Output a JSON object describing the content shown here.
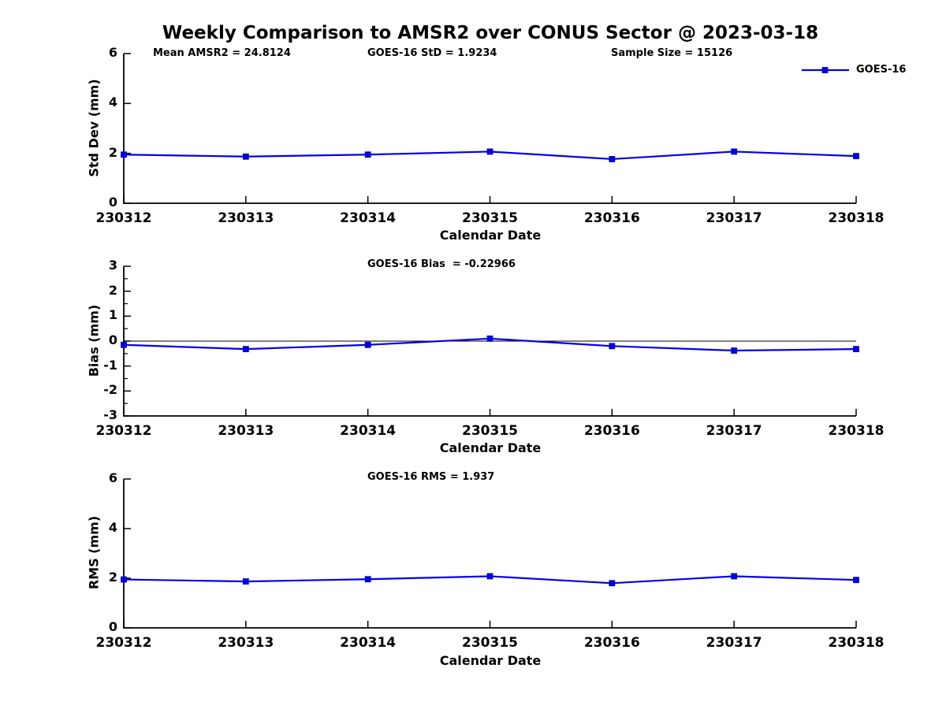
{
  "title": "Weekly Comparison to AMSR2 over CONUS Sector @ 2023-03-18",
  "annotations": {
    "mean_amsr2": "Mean AMSR2 = 24.8124",
    "goes16_std": "GOES-16 StD = 1.9234",
    "sample_size": "Sample Size = 15126",
    "goes16_bias": "GOES-16 Bias  = -0.22966",
    "goes16_rms": "GOES-16 RMS = 1.937"
  },
  "colors": {
    "line": "#0000ee",
    "marker_fill": "#0000f0",
    "marker_edge": "#000090",
    "axis": "#000000"
  },
  "chart_data": [
    {
      "type": "line",
      "ylabel": "Std Dev (mm)",
      "xlabel": "Calendar Date",
      "categories": [
        "230312",
        "230313",
        "230314",
        "230315",
        "230316",
        "230317",
        "230318"
      ],
      "series": [
        {
          "name": "GOES-16",
          "values": [
            1.95,
            1.87,
            1.95,
            2.07,
            1.77,
            2.07,
            1.89
          ]
        }
      ],
      "ylim": [
        0,
        6
      ],
      "yticks": [
        0,
        2,
        4,
        6
      ],
      "minor_ytick_step": null,
      "zero_line": false,
      "legend_position": "top-right-outside",
      "grid": false
    },
    {
      "type": "line",
      "ylabel": "Bias (mm)",
      "xlabel": "Calendar Date",
      "categories": [
        "230312",
        "230313",
        "230314",
        "230315",
        "230316",
        "230317",
        "230318"
      ],
      "series": [
        {
          "name": "GOES-16",
          "values": [
            -0.15,
            -0.32,
            -0.15,
            0.1,
            -0.2,
            -0.38,
            -0.32
          ]
        }
      ],
      "ylim": [
        -3,
        3
      ],
      "yticks": [
        -3,
        -2,
        -1,
        0,
        1,
        2,
        3
      ],
      "minor_ytick_step": 0.5,
      "zero_line": true,
      "grid": false
    },
    {
      "type": "line",
      "ylabel": "RMS (mm)",
      "xlabel": "Calendar Date",
      "categories": [
        "230312",
        "230313",
        "230314",
        "230315",
        "230316",
        "230317",
        "230318"
      ],
      "series": [
        {
          "name": "GOES-16",
          "values": [
            1.95,
            1.87,
            1.96,
            2.08,
            1.8,
            2.08,
            1.93
          ]
        }
      ],
      "ylim": [
        0,
        6
      ],
      "yticks": [
        0,
        2,
        4,
        6
      ],
      "minor_ytick_step": null,
      "zero_line": false,
      "grid": false
    }
  ]
}
